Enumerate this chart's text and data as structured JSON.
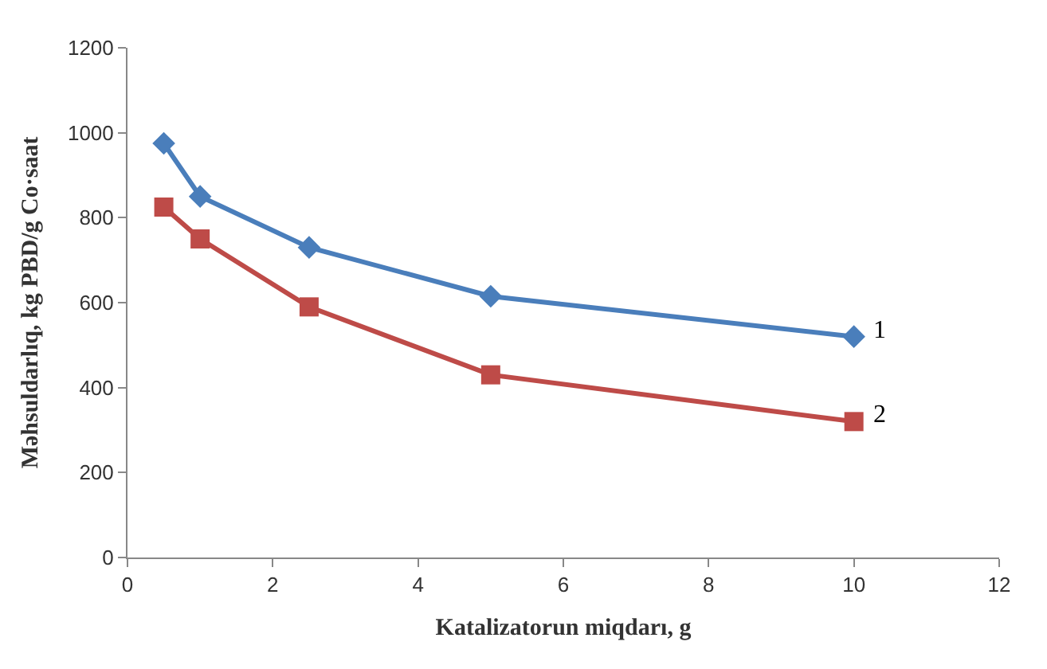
{
  "chart_data": {
    "type": "line",
    "xlabel": "Katalizatorun miqdarı, g",
    "ylabel": "Məhsuldarlıq, kg PBD/g Co·saat",
    "x": [
      0.5,
      1,
      2.5,
      5,
      10
    ],
    "series": [
      {
        "name": "1",
        "color": "#4a7ebb",
        "values": [
          975,
          850,
          730,
          615,
          520
        ],
        "marker": "diamond"
      },
      {
        "name": "2",
        "color": "#be4b48",
        "values": [
          825,
          750,
          590,
          430,
          320
        ],
        "marker": "square"
      }
    ],
    "xlim": [
      0,
      12
    ],
    "xticks": [
      0,
      2,
      4,
      6,
      8,
      10,
      12
    ],
    "ylim": [
      0,
      1200
    ],
    "yticks": [
      0,
      200,
      400,
      600,
      800,
      1000,
      1200
    ],
    "grid": false,
    "legend": false,
    "line_style": "solid"
  }
}
